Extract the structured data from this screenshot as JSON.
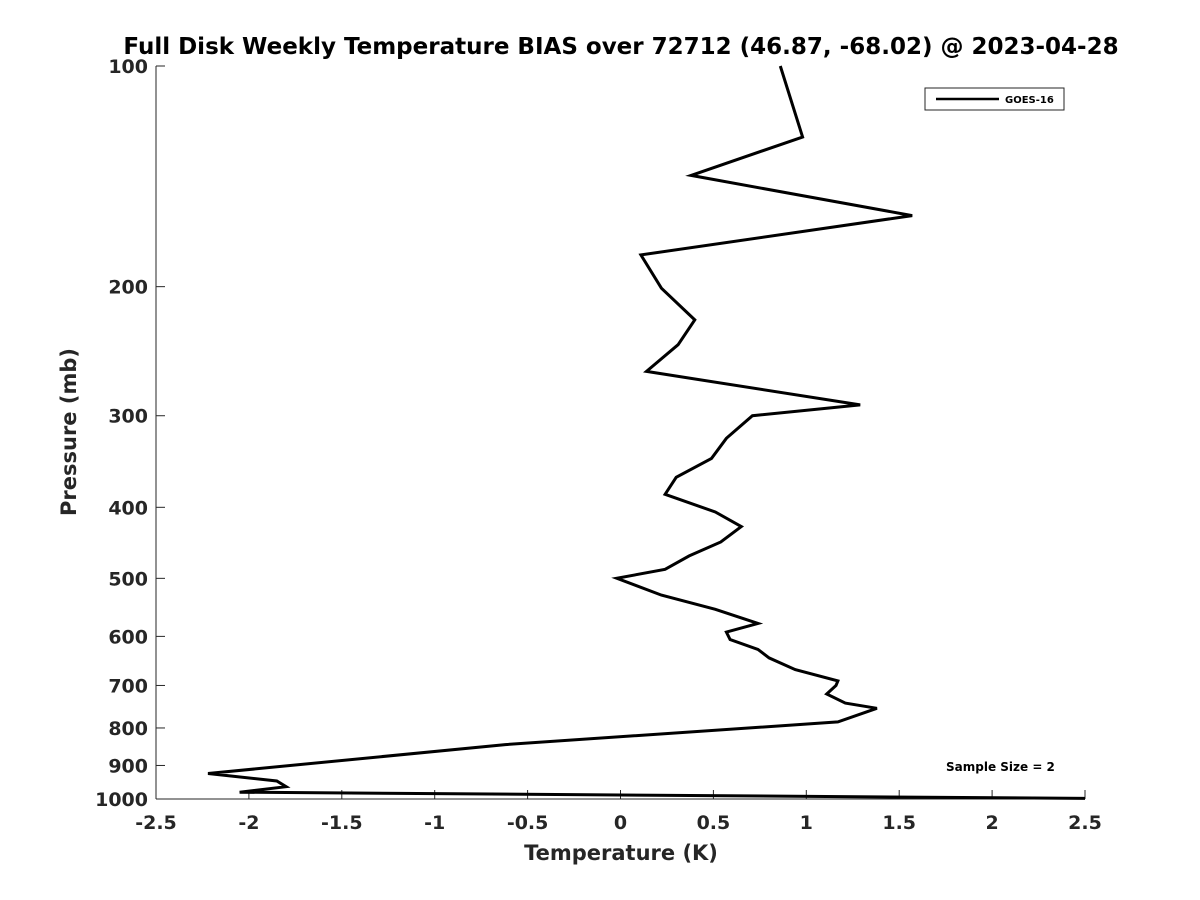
{
  "chart_data": {
    "type": "line",
    "title": "Full Disk Weekly Temperature BIAS over 72712 (46.87, -68.02) @ 2023-04-28",
    "xlabel": "Temperature (K)",
    "ylabel": "Pressure (mb)",
    "xlim": [
      -2.5,
      2.5
    ],
    "ylim": [
      100,
      1000
    ],
    "y_scale": "log",
    "y_reversed": true,
    "x_ticks": [
      -2.5,
      -2,
      -1.5,
      -1,
      -0.5,
      0,
      0.5,
      1,
      1.5,
      2,
      2.5
    ],
    "x_tick_labels": [
      "-2.5",
      "-2",
      "-1.5",
      "-1",
      "-0.5",
      "0",
      "0.5",
      "1",
      "1.5",
      "2",
      "2.5"
    ],
    "y_ticks": [
      100,
      200,
      300,
      400,
      500,
      600,
      700,
      800,
      900,
      1000
    ],
    "y_tick_labels": [
      "100",
      "200",
      "300",
      "400",
      "500",
      "600",
      "700",
      "800",
      "900",
      "1000"
    ],
    "grid": false,
    "legend_position": "top-right",
    "series": [
      {
        "name": "GOES-16",
        "color": "#000000",
        "points": [
          {
            "t": 0.86,
            "p": 100
          },
          {
            "t": 0.98,
            "p": 125
          },
          {
            "t": 0.38,
            "p": 141
          },
          {
            "t": 1.57,
            "p": 160
          },
          {
            "t": 0.11,
            "p": 181
          },
          {
            "t": 0.22,
            "p": 201
          },
          {
            "t": 0.4,
            "p": 222
          },
          {
            "t": 0.31,
            "p": 240
          },
          {
            "t": 0.14,
            "p": 261
          },
          {
            "t": 1.29,
            "p": 290
          },
          {
            "t": 0.71,
            "p": 300
          },
          {
            "t": 0.57,
            "p": 322
          },
          {
            "t": 0.49,
            "p": 343
          },
          {
            "t": 0.3,
            "p": 364
          },
          {
            "t": 0.24,
            "p": 384
          },
          {
            "t": 0.51,
            "p": 406
          },
          {
            "t": 0.65,
            "p": 425
          },
          {
            "t": 0.54,
            "p": 446
          },
          {
            "t": 0.37,
            "p": 466
          },
          {
            "t": 0.24,
            "p": 486
          },
          {
            "t": -0.02,
            "p": 500
          },
          {
            "t": 0.22,
            "p": 527
          },
          {
            "t": 0.51,
            "p": 551
          },
          {
            "t": 0.74,
            "p": 576
          },
          {
            "t": 0.57,
            "p": 592
          },
          {
            "t": 0.59,
            "p": 606
          },
          {
            "t": 0.74,
            "p": 625
          },
          {
            "t": 0.8,
            "p": 642
          },
          {
            "t": 0.94,
            "p": 666
          },
          {
            "t": 1.17,
            "p": 690
          },
          {
            "t": 1.16,
            "p": 700
          },
          {
            "t": 1.11,
            "p": 719
          },
          {
            "t": 1.21,
            "p": 740
          },
          {
            "t": 1.38,
            "p": 752
          },
          {
            "t": 1.17,
            "p": 785
          },
          {
            "t": -0.62,
            "p": 843
          },
          {
            "t": -2.22,
            "p": 923
          },
          {
            "t": -1.85,
            "p": 945
          },
          {
            "t": -1.8,
            "p": 962
          },
          {
            "t": -2.05,
            "p": 979
          },
          {
            "t": 2.5,
            "p": 998
          }
        ]
      }
    ],
    "annotation": "Sample Size = 2"
  }
}
